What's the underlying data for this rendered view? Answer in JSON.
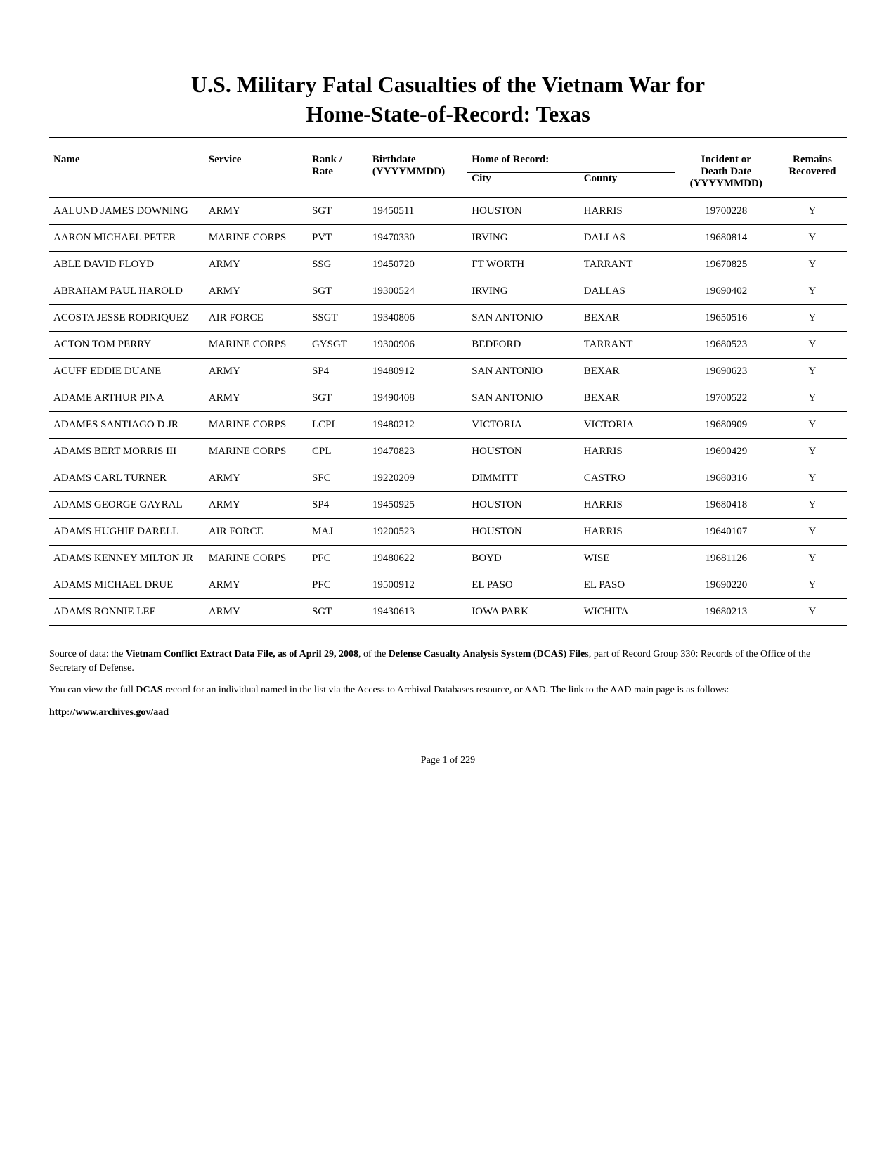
{
  "title_line1": "U.S. Military Fatal Casualties of the Vietnam War for",
  "title_line2": "Home-State-of-Record: Texas",
  "headers": {
    "name": "Name",
    "service": "Service",
    "rank_l1": "Rank /",
    "rank_l2": "Rate",
    "birth_l1": "Birthdate",
    "birth_l2": "(YYYYMMDD)",
    "hor_group": "Home of Record:",
    "city": "City",
    "county": "County",
    "death_l1": "Incident or",
    "death_l2": "Death Date",
    "death_l3": "(YYYYMMDD)",
    "remains_l1": "Remains",
    "remains_l2": "Recovered"
  },
  "rows": [
    {
      "name": "AALUND JAMES DOWNING",
      "service": "ARMY",
      "rank": "SGT",
      "birth": "19450511",
      "city": "HOUSTON",
      "county": "HARRIS",
      "death": "19700228",
      "remains": "Y"
    },
    {
      "name": "AARON MICHAEL PETER",
      "service": "MARINE CORPS",
      "rank": "PVT",
      "birth": "19470330",
      "city": "IRVING",
      "county": "DALLAS",
      "death": "19680814",
      "remains": "Y"
    },
    {
      "name": "ABLE DAVID FLOYD",
      "service": "ARMY",
      "rank": "SSG",
      "birth": "19450720",
      "city": "FT WORTH",
      "county": "TARRANT",
      "death": "19670825",
      "remains": "Y"
    },
    {
      "name": "ABRAHAM PAUL HAROLD",
      "service": "ARMY",
      "rank": "SGT",
      "birth": "19300524",
      "city": "IRVING",
      "county": "DALLAS",
      "death": "19690402",
      "remains": "Y"
    },
    {
      "name": "ACOSTA JESSE RODRIQUEZ",
      "service": "AIR FORCE",
      "rank": "SSGT",
      "birth": "19340806",
      "city": "SAN ANTONIO",
      "county": "BEXAR",
      "death": "19650516",
      "remains": "Y"
    },
    {
      "name": "ACTON TOM PERRY",
      "service": "MARINE CORPS",
      "rank": "GYSGT",
      "birth": "19300906",
      "city": "BEDFORD",
      "county": "TARRANT",
      "death": "19680523",
      "remains": "Y"
    },
    {
      "name": "ACUFF EDDIE DUANE",
      "service": "ARMY",
      "rank": "SP4",
      "birth": "19480912",
      "city": "SAN ANTONIO",
      "county": "BEXAR",
      "death": "19690623",
      "remains": "Y"
    },
    {
      "name": "ADAME ARTHUR PINA",
      "service": "ARMY",
      "rank": "SGT",
      "birth": "19490408",
      "city": "SAN ANTONIO",
      "county": "BEXAR",
      "death": "19700522",
      "remains": "Y"
    },
    {
      "name": "ADAMES SANTIAGO D JR",
      "service": "MARINE CORPS",
      "rank": "LCPL",
      "birth": "19480212",
      "city": "VICTORIA",
      "county": "VICTORIA",
      "death": "19680909",
      "remains": "Y"
    },
    {
      "name": "ADAMS BERT MORRIS III",
      "service": "MARINE CORPS",
      "rank": "CPL",
      "birth": "19470823",
      "city": "HOUSTON",
      "county": "HARRIS",
      "death": "19690429",
      "remains": "Y"
    },
    {
      "name": "ADAMS CARL TURNER",
      "service": "ARMY",
      "rank": "SFC",
      "birth": "19220209",
      "city": "DIMMITT",
      "county": "CASTRO",
      "death": "19680316",
      "remains": "Y"
    },
    {
      "name": "ADAMS GEORGE GAYRAL",
      "service": "ARMY",
      "rank": "SP4",
      "birth": "19450925",
      "city": "HOUSTON",
      "county": "HARRIS",
      "death": "19680418",
      "remains": "Y"
    },
    {
      "name": "ADAMS HUGHIE DARELL",
      "service": "AIR FORCE",
      "rank": "MAJ",
      "birth": "19200523",
      "city": "HOUSTON",
      "county": "HARRIS",
      "death": "19640107",
      "remains": "Y"
    },
    {
      "name": "ADAMS KENNEY MILTON JR",
      "service": "MARINE CORPS",
      "rank": "PFC",
      "birth": "19480622",
      "city": "BOYD",
      "county": "WISE",
      "death": "19681126",
      "remains": "Y"
    },
    {
      "name": "ADAMS MICHAEL DRUE",
      "service": "ARMY",
      "rank": "PFC",
      "birth": "19500912",
      "city": "EL PASO",
      "county": "EL PASO",
      "death": "19690220",
      "remains": "Y"
    },
    {
      "name": "ADAMS RONNIE LEE",
      "service": "ARMY",
      "rank": "SGT",
      "birth": "19430613",
      "city": "IOWA PARK",
      "county": "WICHITA",
      "death": "19680213",
      "remains": "Y"
    }
  ],
  "footer": {
    "source_prefix": "Source of data: the ",
    "source_bold1": "Vietnam Conflict Extract Data File, as of April 29, 2008",
    "source_mid": ", of the ",
    "source_bold2": "Defense Casualty Analysis System (DCAS) File",
    "source_suffix": "s, part of Record Group 330: Records of the Office of the Secretary of Defense.",
    "access_prefix": "You can view the full ",
    "access_bold": "DCAS",
    "access_suffix": " record for an individual named in the list via the Access to Archival Databases resource, or AAD.  The link to the AAD main page is as follows:",
    "link": "http://www.archives.gov/aad"
  },
  "page": "Page 1 of 229"
}
